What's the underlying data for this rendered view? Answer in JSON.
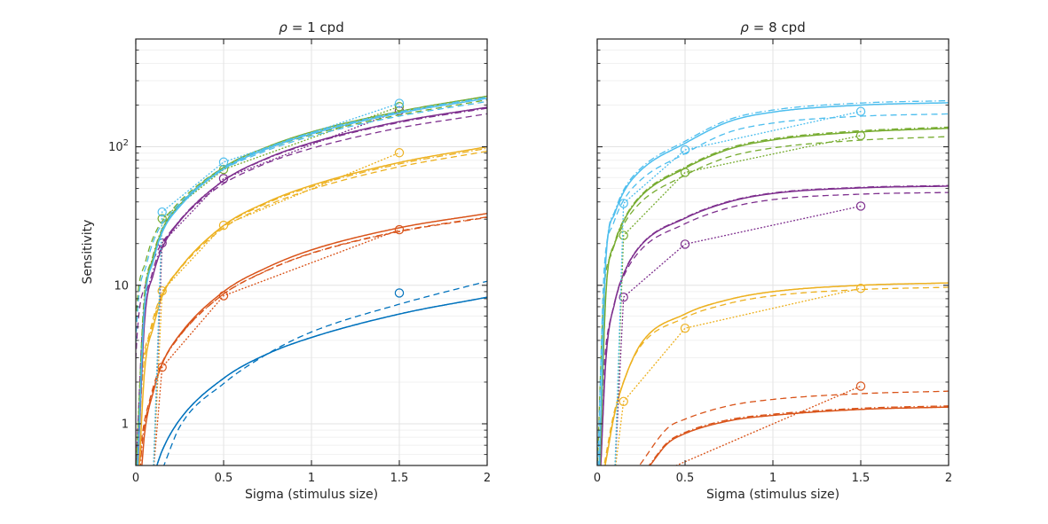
{
  "figure": {
    "background": "#ffffff",
    "axis_color": "#262626",
    "grid_major_color": "#e3e3e3",
    "grid_minor_color": "#f1f1f1"
  },
  "chart_data": {
    "type": "line",
    "xlabel": "Sigma (stimulus size)",
    "ylabel": "Sensitivity",
    "xlim": [
      0,
      2
    ],
    "ylim_log": [
      0.5,
      600
    ],
    "x_ticks": [
      {
        "v": 0,
        "t": "0"
      },
      {
        "v": 0.5,
        "t": "0.5"
      },
      {
        "v": 1,
        "t": "1"
      },
      {
        "v": 1.5,
        "t": "1.5"
      },
      {
        "v": 2,
        "t": "2"
      }
    ],
    "y_ticks": [
      {
        "v": 1,
        "t": "1"
      },
      {
        "v": 10,
        "t": "10"
      },
      {
        "v": 100,
        "t": "10",
        "sup": "2"
      }
    ],
    "y_minor": [
      0.6,
      0.7,
      0.8,
      0.9,
      2,
      3,
      4,
      5,
      6,
      7,
      8,
      9,
      20,
      30,
      40,
      50,
      60,
      70,
      80,
      90,
      200,
      300,
      400,
      500
    ],
    "x_grid": [
      0.5,
      1,
      1.5
    ],
    "line_styles": [
      "solid",
      "dashed",
      "dashdot",
      "dotted-data"
    ],
    "marker_x": [
      0.15,
      0.5,
      1.5
    ],
    "marker_style": {
      "shape": "circle",
      "fill": "none",
      "radius": 4.6
    },
    "panels": [
      {
        "title_symbol": "ρ",
        "title_rest": "= 1 cpd",
        "series": [
          {
            "name": "blue",
            "color": "#0072BD",
            "solid": [
              [
                0.12,
                0.5
              ],
              [
                0.15,
                0.64
              ],
              [
                0.25,
                1.07
              ],
              [
                0.5,
                2.13
              ],
              [
                0.75,
                3.2
              ],
              [
                1,
                4.2
              ],
              [
                1.5,
                6.2
              ],
              [
                2,
                8.2
              ]
            ],
            "dashed": [
              [
                0.16,
                0.5
              ],
              [
                0.25,
                0.95
              ],
              [
                0.5,
                1.95
              ],
              [
                0.75,
                3.2
              ],
              [
                1,
                4.6
              ],
              [
                1.5,
                7.3
              ],
              [
                2,
                10.7
              ]
            ],
            "dashdot_tf": [
              0,
              1.0
            ],
            "markers": [
              [
                1.5,
                8.8
              ]
            ]
          },
          {
            "name": "red",
            "color": "#D95319",
            "solid": [
              [
                0.035,
                0.5
              ],
              [
                0.05,
                0.85
              ],
              [
                0.1,
                1.7
              ],
              [
                0.15,
                2.7
              ],
              [
                0.25,
                4.4
              ],
              [
                0.5,
                9.0
              ],
              [
                0.75,
                13.5
              ],
              [
                1,
                18
              ],
              [
                1.5,
                26
              ],
              [
                2,
                33
              ]
            ],
            "dashed_tf": [
              0.015,
              0.93
            ],
            "dashdot_tf": [
              0.01,
              0.94
            ],
            "markers": [
              [
                0.15,
                2.56
              ],
              [
                0.5,
                8.4
              ],
              [
                1.5,
                25.2
              ]
            ]
          },
          {
            "name": "yellow",
            "color": "#EDB120",
            "solid": [
              [
                0.02,
                0.5
              ],
              [
                0.05,
                2.4
              ],
              [
                0.1,
                5.0
              ],
              [
                0.15,
                8.3
              ],
              [
                0.25,
                13.2
              ],
              [
                0.5,
                27
              ],
              [
                0.75,
                40
              ],
              [
                1,
                52.6
              ],
              [
                1.5,
                77
              ],
              [
                2,
                100
              ]
            ],
            "dashed_tf": [
              0.02,
              0.92
            ],
            "dashdot_tf": [
              0.01,
              0.97
            ],
            "markers": [
              [
                0.15,
                9.1
              ],
              [
                0.5,
                27.1
              ],
              [
                1.5,
                90.6
              ]
            ]
          },
          {
            "name": "purple",
            "color": "#7E2F8E",
            "solid": [
              [
                0.012,
                0.5
              ],
              [
                0.05,
                5.5
              ],
              [
                0.1,
                12
              ],
              [
                0.15,
                18.5
              ],
              [
                0.25,
                29
              ],
              [
                0.5,
                57
              ],
              [
                0.75,
                83
              ],
              [
                1,
                107
              ],
              [
                1.5,
                152
              ],
              [
                2,
                193
              ]
            ],
            "dashed_tf": [
              0.04,
              0.88
            ],
            "dashdot_tf": [
              0.01,
              0.98
            ],
            "markers": [
              [
                0.15,
                20.2
              ],
              [
                0.5,
                59
              ],
              [
                1.5,
                182
              ]
            ]
          },
          {
            "name": "green",
            "color": "#77AC30",
            "solid": [
              [
                0.01,
                0.55
              ],
              [
                0.05,
                7.5
              ],
              [
                0.1,
                16
              ],
              [
                0.15,
                25
              ],
              [
                0.25,
                38
              ],
              [
                0.5,
                71
              ],
              [
                0.75,
                100
              ],
              [
                1,
                128
              ],
              [
                1.5,
                180
              ],
              [
                2,
                232
              ]
            ],
            "dashed_tf": [
              0.045,
              0.92
            ],
            "dashdot_tf": [
              0.005,
              0.99
            ],
            "markers": [
              [
                0.15,
                30.3
              ],
              [
                0.5,
                68.6
              ],
              [
                1.5,
                195
              ]
            ]
          },
          {
            "name": "cyan",
            "color": "#4DBEEE",
            "solid": [
              [
                0.01,
                0.5
              ],
              [
                0.05,
                7.0
              ],
              [
                0.1,
                15
              ],
              [
                0.15,
                24
              ],
              [
                0.25,
                37
              ],
              [
                0.5,
                69
              ],
              [
                0.75,
                97
              ],
              [
                1,
                124
              ],
              [
                1.5,
                175
              ],
              [
                2,
                224
              ]
            ],
            "dashed_tf": [
              0.04,
              0.93
            ],
            "dashdot_tf": [
              0,
              1.02
            ],
            "markers": [
              [
                0.15,
                33.8
              ],
              [
                0.5,
                77.6
              ],
              [
                1.5,
                206
              ]
            ]
          }
        ]
      },
      {
        "title_symbol": "ρ",
        "title_rest": "= 8 cpd",
        "series": [
          {
            "name": "red",
            "color": "#D95319",
            "solid": [
              [
                0.3,
                0.5
              ],
              [
                0.4,
                0.72
              ],
              [
                0.5,
                0.85
              ],
              [
                0.75,
                1.05
              ],
              [
                1,
                1.15
              ],
              [
                1.5,
                1.27
              ],
              [
                2,
                1.32
              ]
            ],
            "dashed": [
              [
                0.24,
                0.5
              ],
              [
                0.4,
                0.93
              ],
              [
                0.5,
                1.08
              ],
              [
                0.75,
                1.35
              ],
              [
                1,
                1.5
              ],
              [
                1.5,
                1.65
              ],
              [
                2,
                1.72
              ]
            ],
            "dashdot_tf": [
              0,
              1.02
            ],
            "markers": [
              [
                1.5,
                1.87
              ]
            ],
            "dotted": [
              [
                0.45,
                0.5
              ],
              [
                1.5,
                1.87
              ]
            ]
          },
          {
            "name": "yellow",
            "color": "#EDB120",
            "solid": [
              [
                0.045,
                0.5
              ],
              [
                0.1,
                1.2
              ],
              [
                0.15,
                2.0
              ],
              [
                0.25,
                3.8
              ],
              [
                0.5,
                6.2
              ],
              [
                0.75,
                7.9
              ],
              [
                1,
                9.0
              ],
              [
                1.5,
                10.0
              ],
              [
                2,
                10.4
              ]
            ],
            "dashed_tf": [
              0.01,
              0.93
            ],
            "dashdot_tf": [
              0,
              1.0
            ],
            "markers": [
              [
                0.15,
                1.45
              ],
              [
                0.5,
                4.9
              ],
              [
                1.5,
                9.5
              ]
            ]
          },
          {
            "name": "purple",
            "color": "#7E2F8E",
            "solid": [
              [
                0.02,
                0.5
              ],
              [
                0.05,
                3.0
              ],
              [
                0.1,
                7.5
              ],
              [
                0.15,
                12
              ],
              [
                0.25,
                19.5
              ],
              [
                0.5,
                30.5
              ],
              [
                0.75,
                40
              ],
              [
                1,
                46
              ],
              [
                1.5,
                50.5
              ],
              [
                2,
                52
              ]
            ],
            "dashed_tf": [
              0.01,
              0.9
            ],
            "dashdot_tf": [
              0,
              1.01
            ],
            "markers": [
              [
                0.15,
                8.2
              ],
              [
                0.5,
                19.8
              ],
              [
                1.5,
                37.3
              ]
            ]
          },
          {
            "name": "green",
            "color": "#77AC30",
            "solid": [
              [
                0.015,
                0.5
              ],
              [
                0.05,
                9.0
              ],
              [
                0.1,
                20
              ],
              [
                0.15,
                29
              ],
              [
                0.25,
                44
              ],
              [
                0.5,
                70
              ],
              [
                0.75,
                96
              ],
              [
                1,
                112
              ],
              [
                1.5,
                128
              ],
              [
                2,
                136
              ]
            ],
            "dashed_tf": [
              0.015,
              0.87
            ],
            "dashdot_tf": [
              0,
              1.02
            ],
            "markers": [
              [
                0.15,
                22.9
              ],
              [
                0.5,
                65.3
              ],
              [
                1.5,
                120.5
              ]
            ]
          },
          {
            "name": "cyan",
            "color": "#4DBEEE",
            "solid": [
              [
                0.012,
                0.5
              ],
              [
                0.05,
                16
              ],
              [
                0.1,
                33
              ],
              [
                0.15,
                47
              ],
              [
                0.25,
                68
              ],
              [
                0.5,
                106
              ],
              [
                0.75,
                152
              ],
              [
                1,
                178
              ],
              [
                1.5,
                200
              ],
              [
                2,
                208
              ]
            ],
            "dashed_tf": [
              0.01,
              0.83
            ],
            "dashdot_tf": [
              0,
              1.035
            ],
            "markers": [
              [
                0.15,
                39
              ],
              [
                0.5,
                95
              ],
              [
                1.5,
                180
              ]
            ]
          }
        ]
      }
    ]
  }
}
